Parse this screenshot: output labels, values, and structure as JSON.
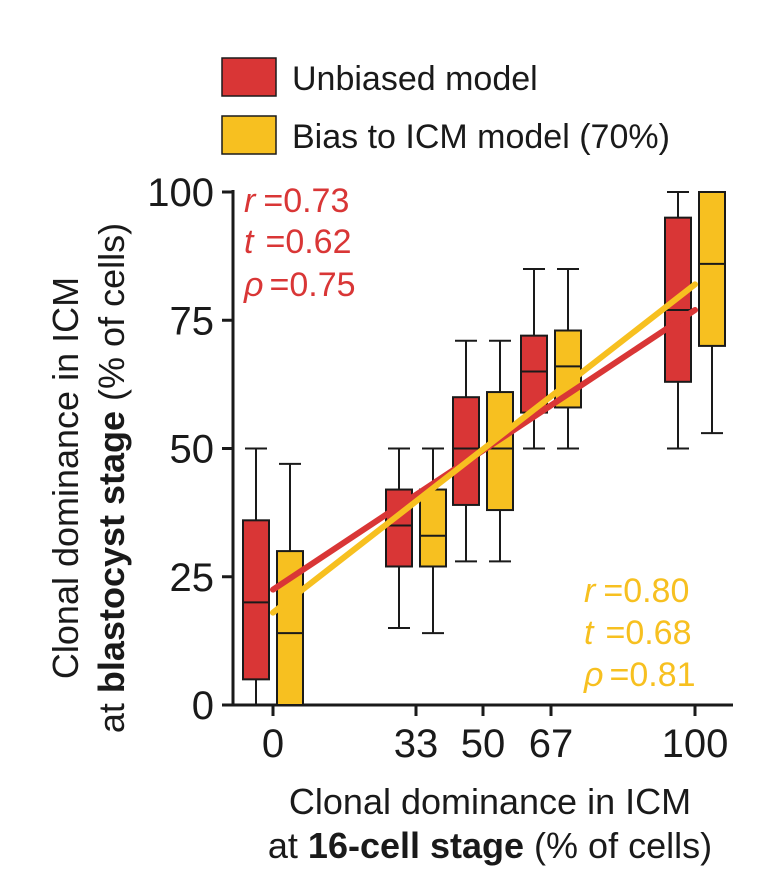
{
  "chart_data": {
    "type": "box",
    "colors": {
      "unbiased": "#d93636",
      "biased": "#f7c020",
      "stroke": "#1a1a1a"
    },
    "legend": [
      {
        "key": "unbiased",
        "label": "Unbiased model"
      },
      {
        "key": "biased",
        "label": "Bias to ICM model (70%)"
      }
    ],
    "y_axis": {
      "ticks": [
        0,
        25,
        50,
        75,
        100
      ],
      "tick_labels": [
        "0",
        "25",
        "50",
        "75",
        "100"
      ],
      "ylim": [
        0,
        100
      ],
      "title_line1": "Clonal dominance in ICM",
      "title_line2_prefix": "at ",
      "title_line2_bold": "blastocyst stage",
      "title_line2_suffix": " (% of cells)"
    },
    "x_axis": {
      "ticks": [
        0,
        33,
        50,
        67,
        100
      ],
      "tick_labels": [
        "0",
        "33",
        "50",
        "67",
        "100"
      ],
      "title_line1": "Clonal dominance in ICM",
      "title_line2_prefix": "at ",
      "title_line2_bold": "16-cell stage",
      "title_line2_suffix": " (% of cells)"
    },
    "series": [
      {
        "name": "Unbiased model",
        "key": "unbiased",
        "boxes": [
          {
            "x": 0,
            "min": 0,
            "q1": 5,
            "median": 20,
            "q3": 36,
            "max": 50
          },
          {
            "x": 33,
            "min": 15,
            "q1": 27,
            "median": 35,
            "q3": 42,
            "max": 50
          },
          {
            "x": 50,
            "min": 28,
            "q1": 39,
            "median": 50,
            "q3": 60,
            "max": 71
          },
          {
            "x": 67,
            "min": 50,
            "q1": 57,
            "median": 65,
            "q3": 72,
            "max": 85
          },
          {
            "x": 100,
            "min": 50,
            "q1": 63,
            "median": 77,
            "q3": 95,
            "max": 100
          }
        ],
        "fit": {
          "x_start": 0,
          "y_start": 22.5,
          "x_end": 100,
          "y_end": 77
        },
        "stats": {
          "r_sym": "r",
          "r": "0.73",
          "t_sym": "t",
          "t": "0.62",
          "rho_sym": "ρ",
          "rho": "0.75"
        }
      },
      {
        "name": "Bias to ICM model (70%)",
        "key": "biased",
        "boxes": [
          {
            "x": 0,
            "min": 0,
            "q1": 0,
            "median": 14,
            "q3": 30,
            "max": 47
          },
          {
            "x": 33,
            "min": 14,
            "q1": 27,
            "median": 33,
            "q3": 42,
            "max": 50
          },
          {
            "x": 50,
            "min": 28,
            "q1": 38,
            "median": 50,
            "q3": 61,
            "max": 71
          },
          {
            "x": 67,
            "min": 50,
            "q1": 58,
            "median": 66,
            "q3": 73,
            "max": 85
          },
          {
            "x": 100,
            "min": 53,
            "q1": 70,
            "median": 86,
            "q3": 100,
            "max": 100
          }
        ],
        "fit": {
          "x_start": 0,
          "y_start": 18,
          "x_end": 100,
          "y_end": 82
        },
        "stats": {
          "r_sym": "r",
          "r": "0.80",
          "t_sym": "t",
          "t": "0.68",
          "rho_sym": "ρ",
          "rho": "0.81"
        }
      }
    ]
  }
}
